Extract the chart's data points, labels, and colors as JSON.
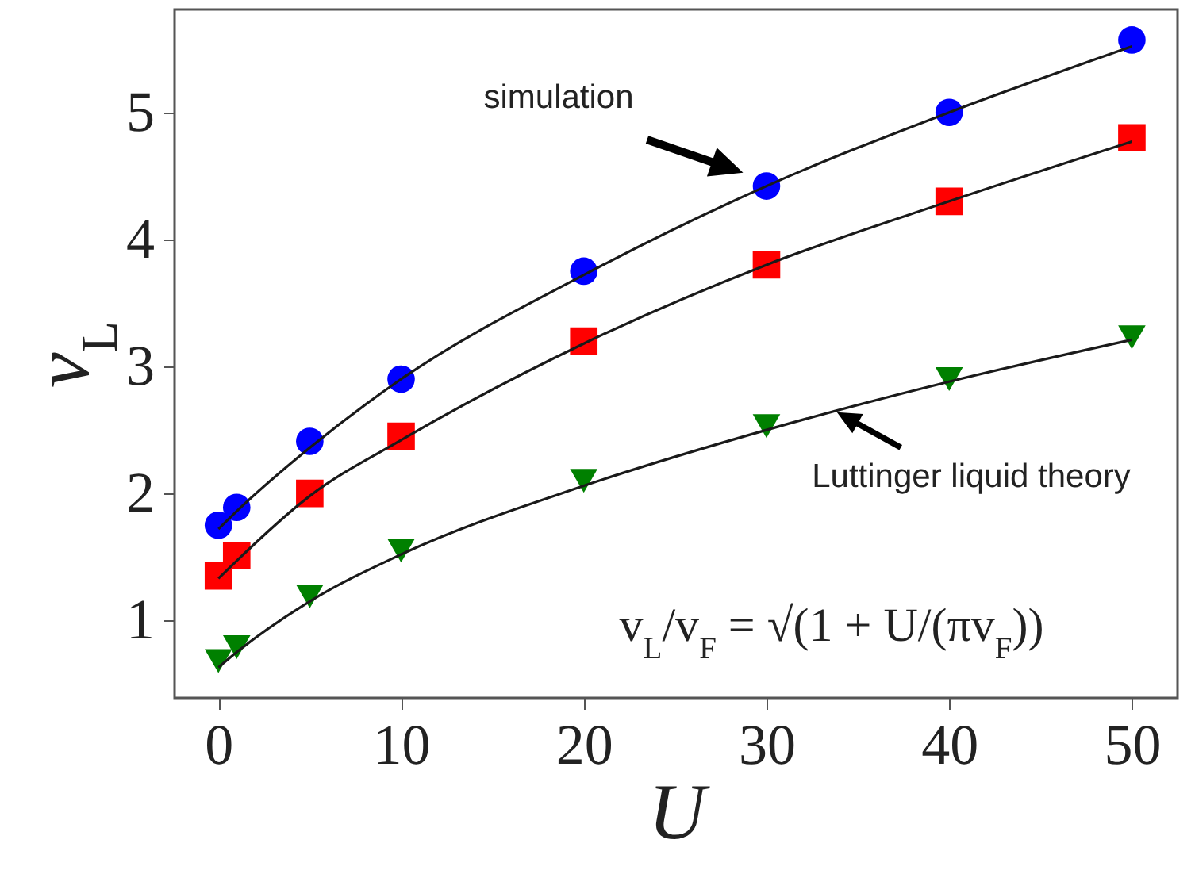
{
  "chart_data": {
    "type": "scatter",
    "xlabel": "U",
    "ylabel": "v$_{L}$",
    "x": [
      0,
      1,
      5,
      10,
      20,
      30,
      40,
      50
    ],
    "xlim": [
      -2.4,
      52.5
    ],
    "xticks": [
      0,
      10,
      20,
      30,
      40,
      50
    ],
    "ylim": [
      0.39,
      5.81
    ],
    "yticks": [
      1,
      2,
      3,
      4,
      5
    ],
    "grid": false,
    "series": [
      {
        "type": "line",
        "color": "#1a1a1a",
        "marker": "none",
        "x": [
          0,
          1,
          5,
          10,
          20,
          30,
          40,
          50
        ],
        "values": [
          1.72,
          1.86,
          2.36,
          2.9,
          3.72,
          4.42,
          5.0,
          5.52
        ]
      },
      {
        "type": "line",
        "color": "#1a1a1a",
        "marker": "none",
        "x": [
          0,
          1,
          5,
          10,
          20,
          30,
          40,
          50
        ],
        "values": [
          1.33,
          1.47,
          1.98,
          2.42,
          3.18,
          3.8,
          4.3,
          4.77
        ]
      },
      {
        "type": "line",
        "color": "#1a1a1a",
        "marker": "none",
        "x": [
          0,
          1,
          5,
          10,
          20,
          30,
          40,
          50
        ],
        "values": [
          0.63,
          0.75,
          1.15,
          1.52,
          2.06,
          2.5,
          2.88,
          3.21
        ]
      },
      {
        "color": "#0000ff",
        "marker": "circle",
        "values": [
          1.75,
          1.89,
          2.41,
          2.9,
          3.75,
          4.42,
          5.0,
          5.57
        ]
      },
      {
        "color": "#ff0000",
        "marker": "square",
        "values": [
          1.35,
          1.51,
          2.0,
          2.45,
          3.2,
          3.8,
          4.3,
          4.8
        ]
      },
      {
        "color": "#008000",
        "marker": "triangle",
        "values": [
          0.68,
          0.79,
          1.19,
          1.55,
          2.1,
          2.53,
          2.9,
          3.23
        ]
      }
    ],
    "annotations": [
      "simulation",
      "Luttinger liquid theory",
      "v$_{L}$/v$_{F}$ = √(1 + U/(πv$_{F}$))"
    ]
  }
}
